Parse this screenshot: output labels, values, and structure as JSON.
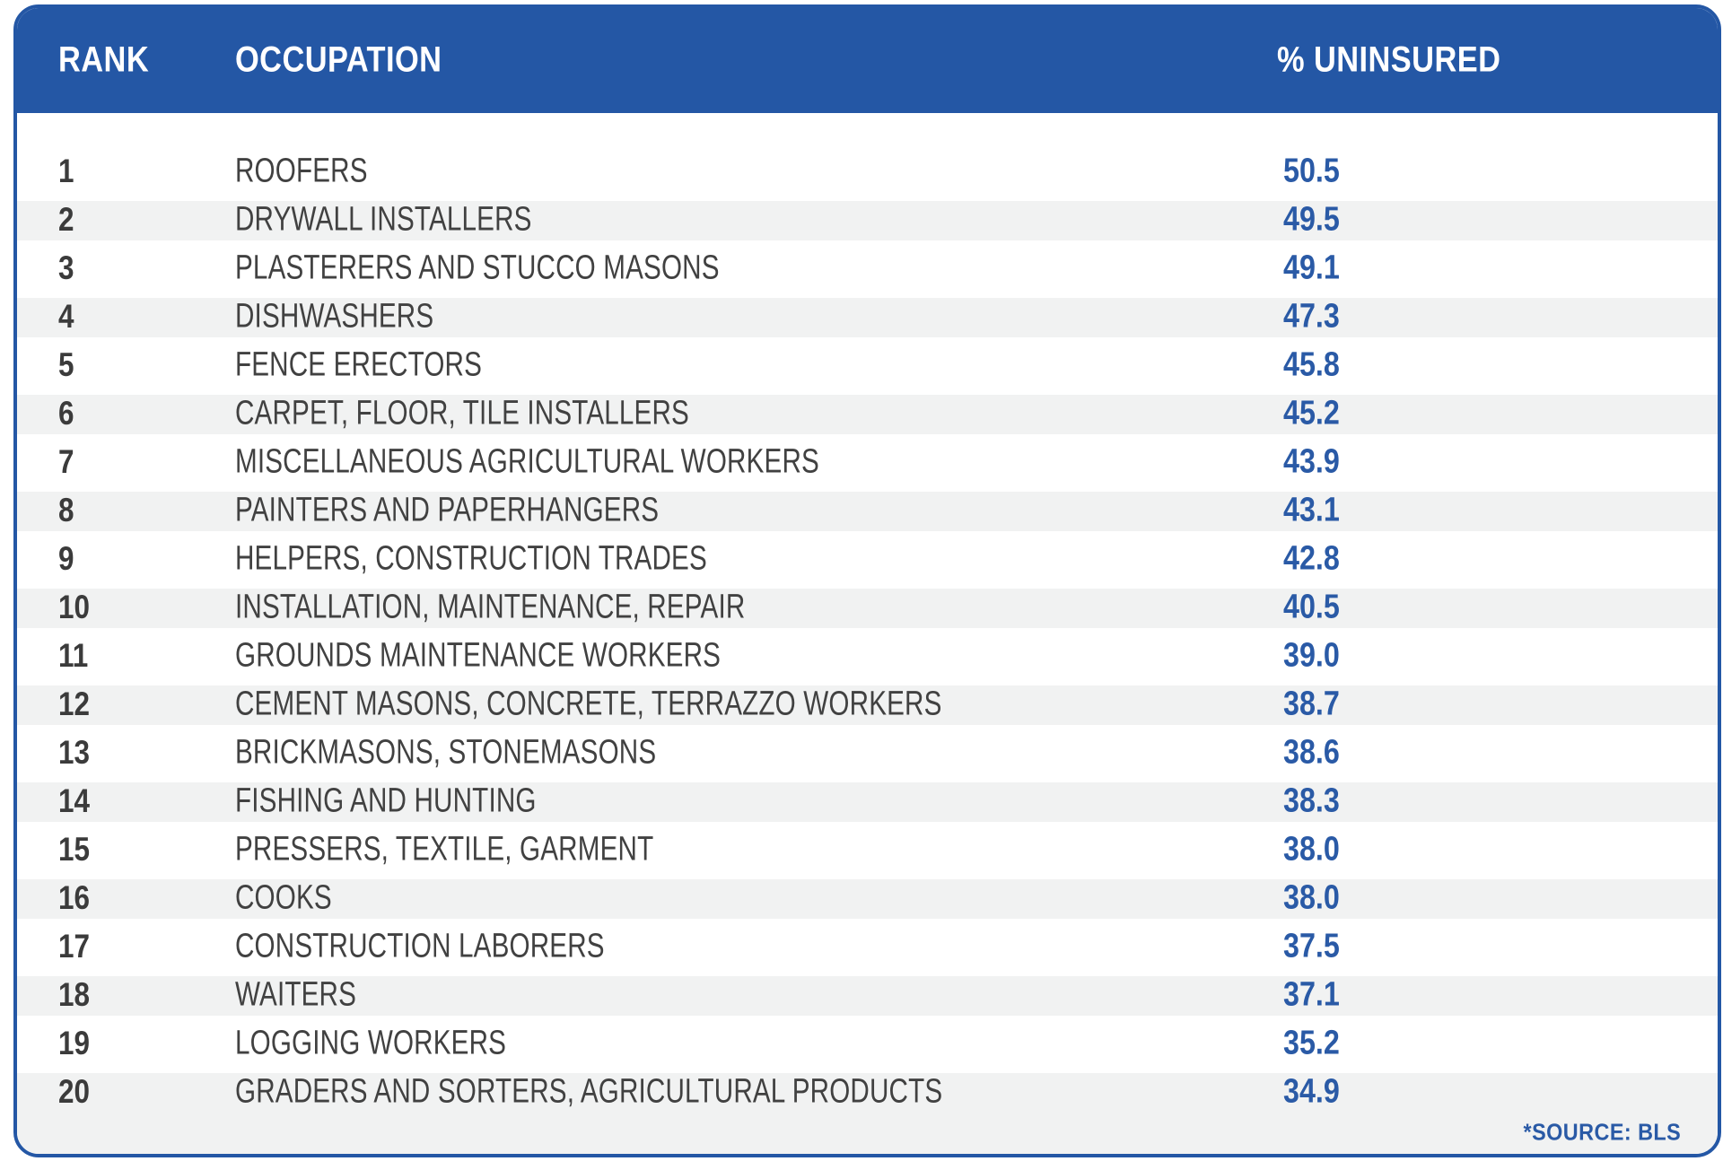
{
  "table": {
    "columns": {
      "rank": "RANK",
      "occupation": "OCCUPATION",
      "uninsured": "% UNINSURED"
    },
    "rows": [
      {
        "rank": "1",
        "occupation": "ROOFERS",
        "value": "50.5"
      },
      {
        "rank": "2",
        "occupation": "DRYWALL INSTALLERS",
        "value": "49.5"
      },
      {
        "rank": "3",
        "occupation": "PLASTERERS AND STUCCO MASONS",
        "value": "49.1"
      },
      {
        "rank": "4",
        "occupation": "DISHWASHERS",
        "value": "47.3"
      },
      {
        "rank": "5",
        "occupation": "FENCE ERECTORS",
        "value": "45.8"
      },
      {
        "rank": "6",
        "occupation": "CARPET, FLOOR, TILE INSTALLERS",
        "value": "45.2"
      },
      {
        "rank": "7",
        "occupation": "MISCELLANEOUS AGRICULTURAL WORKERS",
        "value": "43.9"
      },
      {
        "rank": "8",
        "occupation": "PAINTERS AND PAPERHANGERS",
        "value": "43.1"
      },
      {
        "rank": "9",
        "occupation": "HELPERS, CONSTRUCTION TRADES",
        "value": "42.8"
      },
      {
        "rank": "10",
        "occupation": "INSTALLATION, MAINTENANCE, REPAIR",
        "value": "40.5"
      },
      {
        "rank": "11",
        "occupation": "GROUNDS MAINTENANCE WORKERS",
        "value": "39.0"
      },
      {
        "rank": "12",
        "occupation": "CEMENT MASONS, CONCRETE, TERRAZZO WORKERS",
        "value": "38.7"
      },
      {
        "rank": "13",
        "occupation": "BRICKMASONS, STONEMASONS",
        "value": "38.6"
      },
      {
        "rank": "14",
        "occupation": "FISHING AND HUNTING",
        "value": "38.3"
      },
      {
        "rank": "15",
        "occupation": "PRESSERS, TEXTILE, GARMENT",
        "value": "38.0"
      },
      {
        "rank": "16",
        "occupation": "COOKS",
        "value": "38.0"
      },
      {
        "rank": "17",
        "occupation": "CONSTRUCTION LABORERS",
        "value": "37.5"
      },
      {
        "rank": "18",
        "occupation": "WAITERS",
        "value": "37.1"
      },
      {
        "rank": "19",
        "occupation": "LOGGING WORKERS",
        "value": "35.2"
      },
      {
        "rank": "20",
        "occupation": "GRADERS AND SORTERS, AGRICULTURAL PRODUCTS",
        "value": "34.9"
      }
    ],
    "source": "*SOURCE: BLS"
  },
  "colors": {
    "header_blue": "#2457a5",
    "value_blue": "#2a5aa6",
    "stripe_gray": "#f1f2f2",
    "text_dark": "#414141"
  },
  "chart_data": {
    "type": "table",
    "title": "",
    "columns": [
      "RANK",
      "OCCUPATION",
      "% UNINSURED"
    ],
    "categories": [
      "ROOFERS",
      "DRYWALL INSTALLERS",
      "PLASTERERS AND STUCCO MASONS",
      "DISHWASHERS",
      "FENCE ERECTORS",
      "CARPET, FLOOR, TILE INSTALLERS",
      "MISCELLANEOUS AGRICULTURAL WORKERS",
      "PAINTERS AND PAPERHANGERS",
      "HELPERS, CONSTRUCTION TRADES",
      "INSTALLATION, MAINTENANCE, REPAIR",
      "GROUNDS MAINTENANCE WORKERS",
      "CEMENT MASONS, CONCRETE, TERRAZZO WORKERS",
      "BRICKMASONS, STONEMASONS",
      "FISHING AND HUNTING",
      "PRESSERS, TEXTILE, GARMENT",
      "COOKS",
      "CONSTRUCTION LABORERS",
      "WAITERS",
      "LOGGING WORKERS",
      "GRADERS AND SORTERS, AGRICULTURAL PRODUCTS"
    ],
    "values": [
      50.5,
      49.5,
      49.1,
      47.3,
      45.8,
      45.2,
      43.9,
      43.1,
      42.8,
      40.5,
      39.0,
      38.7,
      38.6,
      38.3,
      38.0,
      38.0,
      37.5,
      37.1,
      35.2,
      34.9
    ],
    "ylabel": "% UNINSURED",
    "annotation": "*SOURCE: BLS",
    "layout": {
      "striped_rows": true,
      "grid": false,
      "legend": "none"
    }
  }
}
